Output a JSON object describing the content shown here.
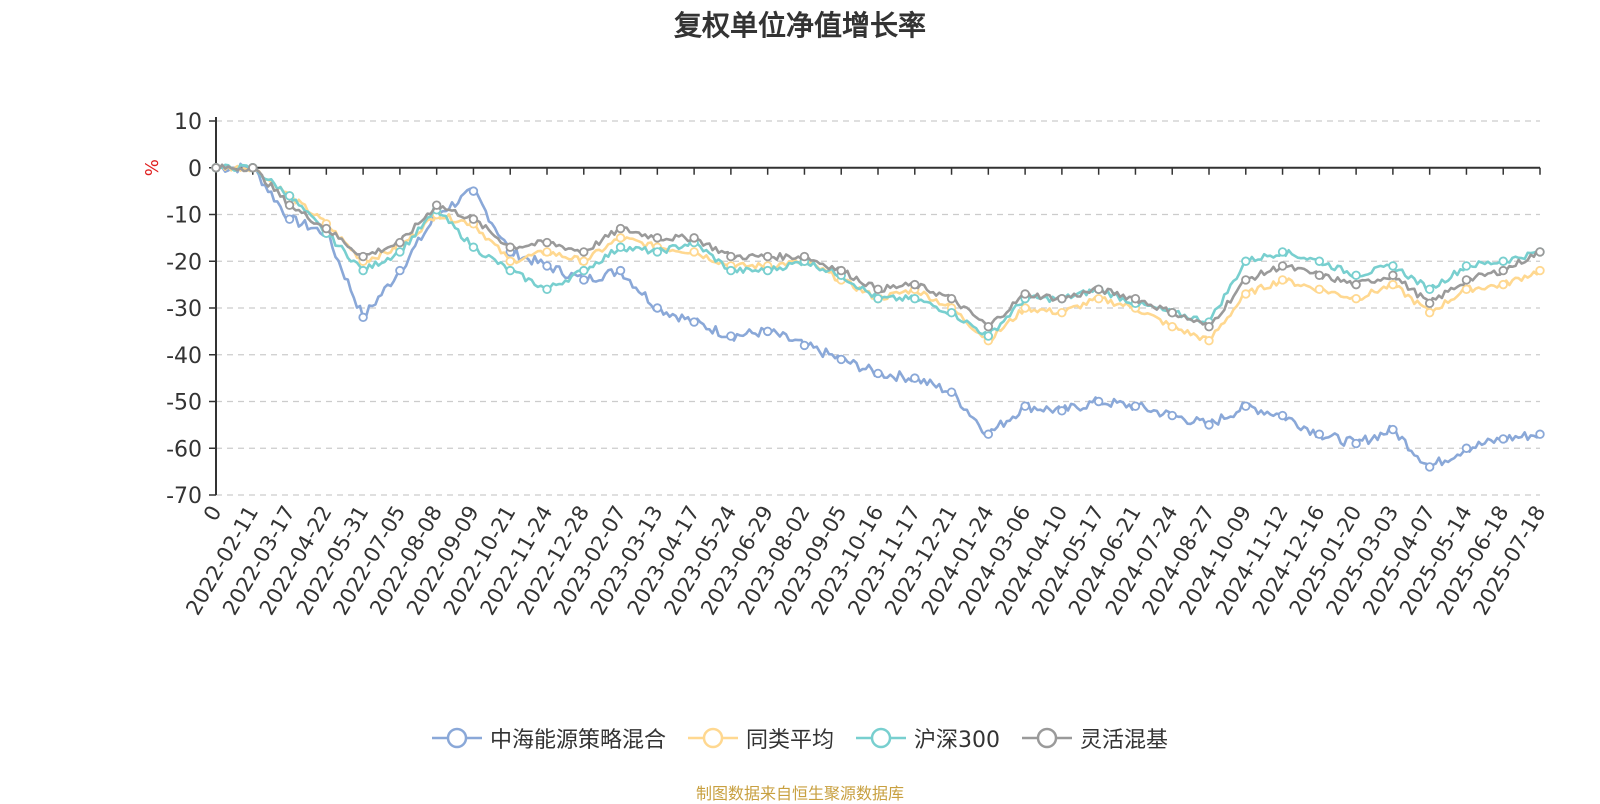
{
  "chart_data": {
    "type": "line",
    "title": "复权单位净值增长率",
    "ylabel": "%",
    "ylim": [
      -70,
      10
    ],
    "yticks": [
      10,
      0,
      -10,
      -20,
      -30,
      -40,
      -50,
      -60,
      -70
    ],
    "grid": true,
    "legend_position": "bottom-center",
    "x_start_label": "0",
    "categories": [
      "2022-02-11",
      "2022-03-17",
      "2022-04-22",
      "2022-05-31",
      "2022-07-05",
      "2022-08-08",
      "2022-09-09",
      "2022-10-21",
      "2022-11-24",
      "2022-12-28",
      "2023-02-07",
      "2023-03-13",
      "2023-04-17",
      "2023-05-24",
      "2023-06-29",
      "2023-08-02",
      "2023-09-05",
      "2023-10-16",
      "2023-11-17",
      "2023-12-21",
      "2024-01-24",
      "2024-03-06",
      "2024-04-10",
      "2024-05-17",
      "2024-06-21",
      "2024-07-24",
      "2024-08-27",
      "2024-10-09",
      "2024-11-12",
      "2024-12-16",
      "2025-01-20",
      "2025-03-03",
      "2025-04-07",
      "2025-05-14",
      "2025-06-18",
      "2025-07-18"
    ],
    "series": [
      {
        "name": "中海能源策略混合",
        "color": "#8aa8d8",
        "values": [
          0,
          -11,
          -14,
          -32,
          -22,
          -10,
          -5,
          -18,
          -21,
          -24,
          -22,
          -30,
          -33,
          -36,
          -35,
          -38,
          -41,
          -44,
          -45,
          -48,
          -57,
          -51,
          -52,
          -50,
          -51,
          -53,
          -55,
          -51,
          -53,
          -57,
          -59,
          -56,
          -64,
          -60,
          -58,
          -57
        ]
      },
      {
        "name": "同类平均",
        "color": "#ffd890",
        "values": [
          0,
          -6,
          -12,
          -20,
          -17,
          -10,
          -12,
          -20,
          -18,
          -20,
          -15,
          -17,
          -18,
          -21,
          -21,
          -20,
          -24,
          -28,
          -26,
          -30,
          -37,
          -30,
          -31,
          -28,
          -30,
          -34,
          -37,
          -27,
          -24,
          -26,
          -28,
          -25,
          -31,
          -26,
          -25,
          -22
        ]
      },
      {
        "name": "沪深300",
        "color": "#78cfcf",
        "values": [
          0,
          -6,
          -14,
          -22,
          -18,
          -9,
          -17,
          -22,
          -26,
          -22,
          -17,
          -18,
          -16,
          -22,
          -22,
          -20,
          -23,
          -28,
          -28,
          -31,
          -36,
          -28,
          -28,
          -26,
          -29,
          -31,
          -33,
          -20,
          -18,
          -20,
          -23,
          -21,
          -26,
          -21,
          -20,
          -18
        ]
      },
      {
        "name": "灵活混基",
        "color": "#9a9a9a",
        "values": [
          0,
          -8,
          -13,
          -19,
          -16,
          -8,
          -11,
          -17,
          -16,
          -18,
          -13,
          -15,
          -15,
          -19,
          -19,
          -19,
          -22,
          -26,
          -25,
          -28,
          -34,
          -27,
          -28,
          -26,
          -28,
          -31,
          -34,
          -24,
          -21,
          -23,
          -25,
          -23,
          -29,
          -24,
          -22,
          -18
        ]
      }
    ]
  },
  "source_note": "制图数据来自恒生聚源数据库"
}
